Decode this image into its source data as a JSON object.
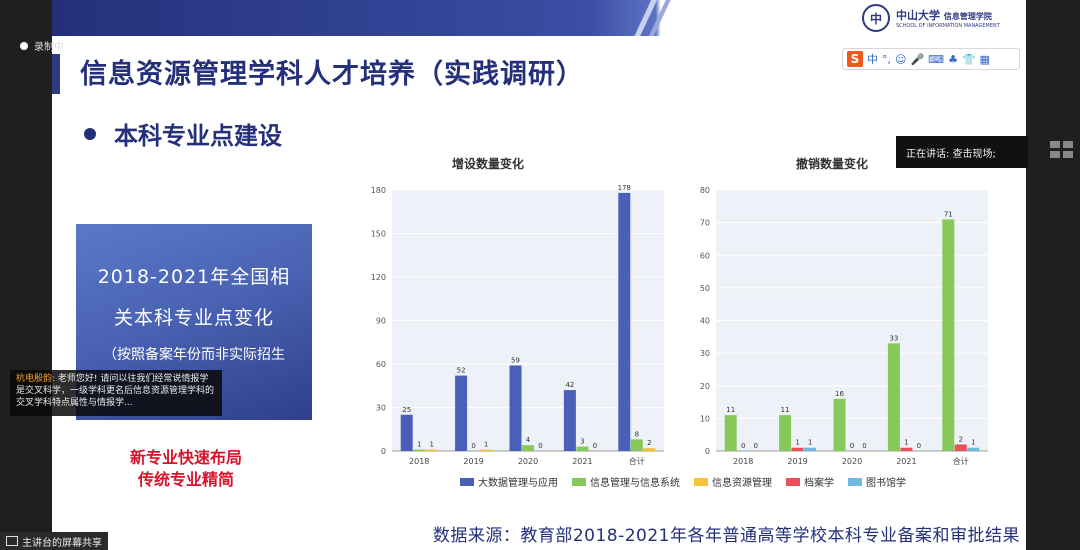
{
  "recording": {
    "label": "录制中"
  },
  "slide": {
    "title": "信息资源管理学科人才培养（实践调研）",
    "subtitle": "本科专业点建设",
    "logo": {
      "seal": "中",
      "school": "中山大学",
      "dept": "信息管理学院",
      "dept_en": "SCHOOL OF INFORMATION MANAGEMENT"
    },
    "left_box": {
      "line1": "2018-2021年全国相",
      "line2": "关本科专业点变化",
      "line3": "（按照备案年份而非实际招生",
      "line4": "）"
    },
    "red_text": {
      "line1": "新专业快速布局",
      "line2": "传统专业精简"
    },
    "source": "数据来源：教育部2018-2021年各年普通高等学校本科专业备案和审批结果"
  },
  "ime_toolbar": {
    "logo": "S",
    "items": [
      "中",
      "°,",
      "☺",
      "🎤",
      "⌨",
      "♣",
      "👕",
      "▦"
    ]
  },
  "speaker_bar": {
    "text": "正在讲话: 查击现场;"
  },
  "chat": {
    "name": "杭电殷韵:",
    "message": "老师您好! 请问以往我们经常说情报学是交叉科学，一级学科更名后信息资源管理学科的交叉学科特点属性与情报学..."
  },
  "screen_share": {
    "label": "主讲台的屏幕共享"
  },
  "colors": {
    "大数据管理与应用": "#4a5fb8",
    "信息管理与信息系统": "#86c95a",
    "信息资源管理": "#f4c53c",
    "档案学": "#e8515a",
    "图书馆学": "#70b8e0"
  },
  "chart_data": [
    {
      "type": "bar",
      "title": "增设数量变化",
      "categories": [
        "2018",
        "2019",
        "2020",
        "2021",
        "合计"
      ],
      "ylim": [
        0,
        180
      ],
      "yticks": [
        0,
        30,
        60,
        90,
        120,
        150,
        180
      ],
      "grid": true,
      "legend": "bottom",
      "series": [
        {
          "name": "大数据管理与应用",
          "values": [
            25,
            52,
            59,
            42,
            178
          ]
        },
        {
          "name": "信息管理与信息系统",
          "values": [
            1,
            0,
            4,
            3,
            8
          ]
        },
        {
          "name": "信息资源管理",
          "values": [
            1,
            1,
            0,
            0,
            2
          ]
        }
      ]
    },
    {
      "type": "bar",
      "title": "撤销数量变化",
      "categories": [
        "2018",
        "2019",
        "2020",
        "2021",
        "合计"
      ],
      "ylim": [
        0,
        80
      ],
      "yticks": [
        0,
        10,
        20,
        30,
        40,
        50,
        60,
        70,
        80
      ],
      "grid": true,
      "legend": "bottom",
      "series": [
        {
          "name": "信息管理与信息系统",
          "values": [
            11,
            11,
            16,
            33,
            71
          ]
        },
        {
          "name": "档案学",
          "values": [
            0,
            1,
            0,
            1,
            2
          ]
        },
        {
          "name": "图书馆学",
          "values": [
            0,
            1,
            0,
            0,
            1
          ]
        }
      ]
    }
  ],
  "legend": [
    "大数据管理与应用",
    "信息管理与信息系统",
    "信息资源管理",
    "档案学",
    "图书馆学"
  ]
}
